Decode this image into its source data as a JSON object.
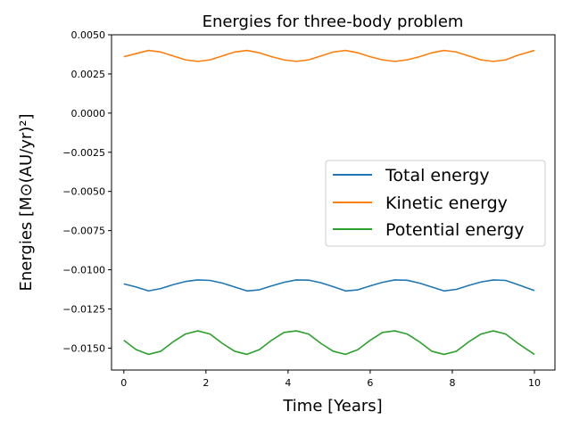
{
  "chart_data": {
    "type": "line",
    "title": "Energies for three-body problem",
    "xlabel": "Time [Years]",
    "ylabel": "Energies [M⊙(AU/yr)²]",
    "xlim": [
      -0.3,
      10.5
    ],
    "ylim": [
      -0.0164,
      0.005
    ],
    "xticks": [
      0,
      2,
      4,
      6,
      8,
      10
    ],
    "xtick_labels": [
      "0",
      "2",
      "4",
      "6",
      "8",
      "10"
    ],
    "yticks": [
      -0.015,
      -0.0125,
      -0.01,
      -0.0075,
      -0.005,
      -0.0025,
      0.0,
      0.0025,
      0.005
    ],
    "ytick_labels": [
      "−0.0150",
      "−0.0125",
      "−0.0100",
      "−0.0075",
      "−0.0050",
      "−0.0025",
      "0.0000",
      "0.0025",
      "0.0050"
    ],
    "grid": false,
    "legend_position": "center-right",
    "series": [
      {
        "name": "Total energy",
        "color": "#1f77b4",
        "x": [
          0,
          0.3,
          0.6,
          0.9,
          1.2,
          1.5,
          1.8,
          2.1,
          2.4,
          2.7,
          3.0,
          3.3,
          3.6,
          3.9,
          4.2,
          4.5,
          4.8,
          5.1,
          5.4,
          5.7,
          6.0,
          6.3,
          6.6,
          6.9,
          7.2,
          7.5,
          7.8,
          8.1,
          8.4,
          8.7,
          9.0,
          9.3,
          9.6,
          10.0
        ],
        "y": [
          -0.0109,
          -0.0111,
          -0.01135,
          -0.0112,
          -0.01095,
          -0.01075,
          -0.01065,
          -0.01068,
          -0.01085,
          -0.0111,
          -0.01135,
          -0.01128,
          -0.01103,
          -0.0108,
          -0.01065,
          -0.01066,
          -0.01083,
          -0.01108,
          -0.01135,
          -0.01128,
          -0.01103,
          -0.0108,
          -0.01065,
          -0.01067,
          -0.01085,
          -0.0111,
          -0.01135,
          -0.01125,
          -0.011,
          -0.01078,
          -0.01065,
          -0.01068,
          -0.01095,
          -0.01133
        ]
      },
      {
        "name": "Kinetic energy",
        "color": "#ff7f0e",
        "x": [
          0,
          0.3,
          0.6,
          0.9,
          1.2,
          1.5,
          1.8,
          2.1,
          2.4,
          2.7,
          3.0,
          3.3,
          3.6,
          3.9,
          4.2,
          4.5,
          4.8,
          5.1,
          5.4,
          5.7,
          6.0,
          6.3,
          6.6,
          6.9,
          7.2,
          7.5,
          7.8,
          8.1,
          8.4,
          8.7,
          9.0,
          9.3,
          9.6,
          10.0
        ],
        "y": [
          0.0036,
          0.0038,
          0.004,
          0.0039,
          0.00365,
          0.0034,
          0.0033,
          0.0034,
          0.00365,
          0.0039,
          0.004,
          0.00385,
          0.0036,
          0.0034,
          0.0033,
          0.0034,
          0.00365,
          0.0039,
          0.004,
          0.00385,
          0.0036,
          0.0034,
          0.0033,
          0.0034,
          0.0036,
          0.00385,
          0.004,
          0.0039,
          0.00365,
          0.0034,
          0.0033,
          0.0034,
          0.0037,
          0.004
        ]
      },
      {
        "name": "Potential energy",
        "color": "#2ca02c",
        "x": [
          0,
          0.3,
          0.6,
          0.9,
          1.2,
          1.5,
          1.8,
          2.1,
          2.4,
          2.7,
          3.0,
          3.3,
          3.6,
          3.9,
          4.2,
          4.5,
          4.8,
          5.1,
          5.4,
          5.7,
          6.0,
          6.3,
          6.6,
          6.9,
          7.2,
          7.5,
          7.8,
          8.1,
          8.4,
          8.7,
          9.0,
          9.3,
          9.6,
          10.0
        ],
        "y": [
          -0.0145,
          -0.0151,
          -0.0154,
          -0.0152,
          -0.0146,
          -0.0141,
          -0.0139,
          -0.0141,
          -0.0147,
          -0.0152,
          -0.0154,
          -0.0151,
          -0.0145,
          -0.014,
          -0.0139,
          -0.0141,
          -0.0147,
          -0.0152,
          -0.0154,
          -0.0151,
          -0.0145,
          -0.014,
          -0.0139,
          -0.0141,
          -0.0146,
          -0.0152,
          -0.0154,
          -0.0152,
          -0.0146,
          -0.0141,
          -0.0139,
          -0.0141,
          -0.0147,
          -0.0154
        ]
      }
    ]
  }
}
